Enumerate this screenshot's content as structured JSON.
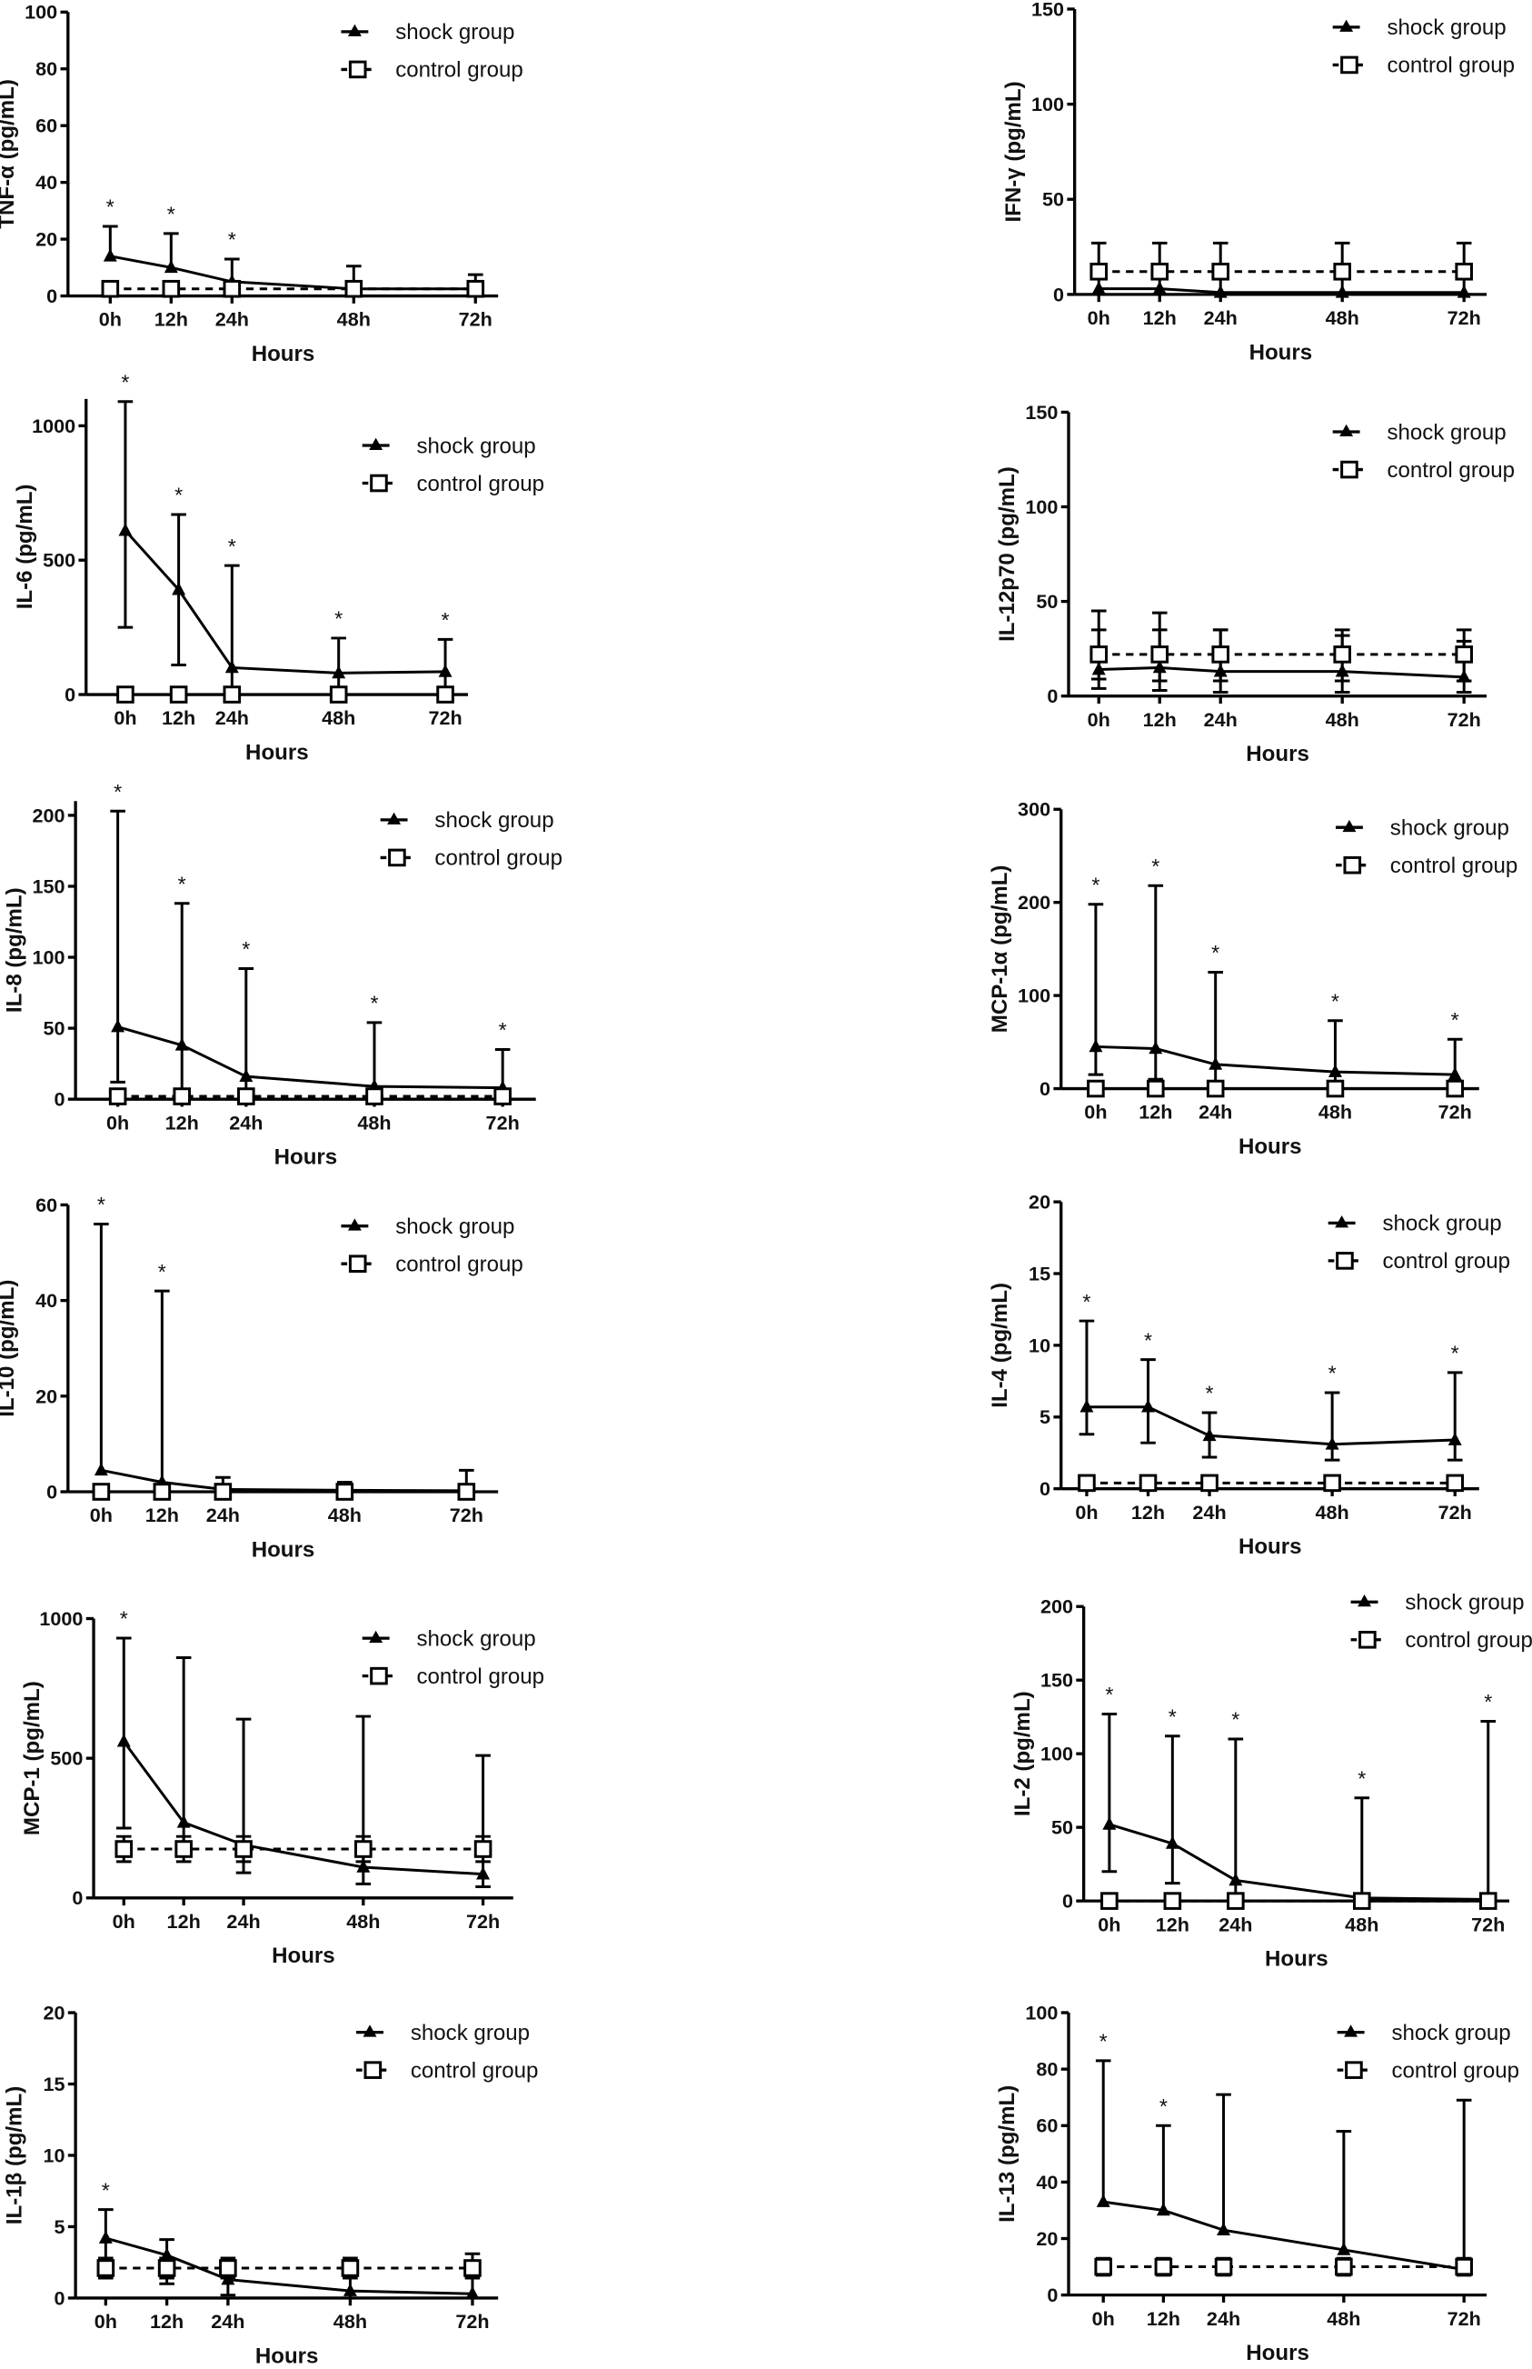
{
  "chart_data": [
    {
      "type": "line",
      "ylabel": "TNF-α (pg/mL)",
      "xlabel": "Hours",
      "x": [
        "0h",
        "12h",
        "24h",
        "48h",
        "72h"
      ],
      "hours": [
        0,
        12,
        24,
        48,
        72
      ],
      "ylim": [
        0,
        100
      ],
      "yticks": [
        0,
        20,
        40,
        60,
        80,
        100
      ],
      "series": [
        {
          "name": "shock group",
          "values": [
            14,
            10,
            5,
            2.5,
            2.5
          ],
          "err_upper": [
            24.5,
            22,
            13,
            10.5,
            7.5
          ],
          "err_lower": [
            null,
            null,
            null,
            null,
            null
          ]
        },
        {
          "name": "control group",
          "values": [
            2.5,
            2.5,
            2.5,
            2.5,
            2.5
          ],
          "err_upper": [
            null,
            null,
            null,
            null,
            null
          ],
          "err_lower": [
            null,
            null,
            null,
            null,
            null
          ]
        }
      ],
      "significance": [
        "*",
        "*",
        "*",
        "",
        ""
      ]
    },
    {
      "type": "line",
      "ylabel": "IFN-γ (pg/mL)",
      "xlabel": "Hours",
      "x": [
        "0h",
        "12h",
        "24h",
        "48h",
        "72h"
      ],
      "hours": [
        0,
        12,
        24,
        48,
        72
      ],
      "ylim": [
        0,
        150
      ],
      "yticks": [
        0,
        50,
        100,
        150
      ],
      "series": [
        {
          "name": "shock group",
          "values": [
            3,
            3,
            1,
            1,
            1
          ],
          "err_upper": [
            null,
            null,
            null,
            null,
            null
          ],
          "err_lower": [
            null,
            null,
            null,
            null,
            null
          ]
        },
        {
          "name": "control group",
          "values": [
            12,
            12,
            12,
            12,
            12
          ],
          "err_upper": [
            27,
            27,
            27,
            27,
            27
          ],
          "err_lower": [
            0,
            0,
            0,
            0,
            0
          ]
        }
      ],
      "significance": [
        "",
        "",
        "",
        "",
        ""
      ]
    },
    {
      "type": "line",
      "ylabel": "IL-6 (pg/mL)",
      "xlabel": "Hours",
      "x": [
        "0h",
        "12h",
        "24h",
        "48h",
        "72h"
      ],
      "hours": [
        0,
        12,
        24,
        48,
        72
      ],
      "ylim": [
        0,
        1100
      ],
      "yticks": [
        0,
        500,
        1000
      ],
      "series": [
        {
          "name": "shock group",
          "values": [
            610,
            390,
            100,
            80,
            85
          ],
          "err_upper": [
            1090,
            670,
            480,
            210,
            205
          ],
          "err_lower": [
            250,
            110,
            0,
            0,
            0
          ]
        },
        {
          "name": "control group",
          "values": [
            0,
            0,
            0,
            0,
            0
          ],
          "err_upper": [
            null,
            null,
            null,
            null,
            null
          ],
          "err_lower": [
            null,
            null,
            null,
            null,
            null
          ]
        }
      ],
      "significance": [
        "*",
        "*",
        "*",
        "*",
        "*"
      ]
    },
    {
      "type": "line",
      "ylabel": "IL-12p70 (pg/mL)",
      "xlabel": "Hours",
      "x": [
        "0h",
        "12h",
        "24h",
        "48h",
        "72h"
      ],
      "hours": [
        0,
        12,
        24,
        48,
        72
      ],
      "ylim": [
        0,
        150
      ],
      "yticks": [
        0,
        50,
        100,
        150
      ],
      "series": [
        {
          "name": "shock group",
          "values": [
            14,
            15,
            13,
            13,
            10
          ],
          "err_upper": [
            35,
            35,
            35,
            32,
            29
          ],
          "err_lower": [
            4,
            3,
            2,
            2,
            2
          ]
        },
        {
          "name": "control group",
          "values": [
            22,
            22,
            22,
            22,
            22
          ],
          "err_upper": [
            45,
            44,
            35,
            35,
            35
          ],
          "err_lower": [
            9,
            8,
            8,
            8,
            8
          ]
        }
      ],
      "significance": [
        "",
        "",
        "",
        "",
        ""
      ]
    },
    {
      "type": "line",
      "ylabel": "IL-8 (pg/mL)",
      "xlabel": "Hours",
      "x": [
        "0h",
        "12h",
        "24h",
        "48h",
        "72h"
      ],
      "hours": [
        0,
        12,
        24,
        48,
        72
      ],
      "ylim": [
        0,
        210
      ],
      "yticks": [
        0,
        50,
        100,
        150,
        200
      ],
      "series": [
        {
          "name": "shock group",
          "values": [
            51,
            38,
            16,
            9,
            8
          ],
          "err_upper": [
            203,
            138,
            92,
            54,
            35
          ],
          "err_lower": [
            12,
            5,
            2,
            1,
            1
          ]
        },
        {
          "name": "control group",
          "values": [
            2,
            2,
            2,
            2,
            2
          ],
          "err_upper": [
            null,
            null,
            null,
            null,
            null
          ],
          "err_lower": [
            null,
            null,
            null,
            null,
            null
          ]
        }
      ],
      "significance": [
        "*",
        "*",
        "*",
        "*",
        "*"
      ]
    },
    {
      "type": "line",
      "ylabel": "MCP-1α (pg/mL)",
      "xlabel": "Hours",
      "x": [
        "0h",
        "12h",
        "24h",
        "48h",
        "72h"
      ],
      "hours": [
        0,
        12,
        24,
        48,
        72
      ],
      "ylim": [
        0,
        300
      ],
      "yticks": [
        0,
        100,
        200,
        300
      ],
      "series": [
        {
          "name": "shock group",
          "values": [
            45,
            43,
            26,
            18,
            15
          ],
          "err_upper": [
            198,
            218,
            125,
            73,
            53
          ],
          "err_lower": [
            15,
            10,
            5,
            3,
            2
          ]
        },
        {
          "name": "control group",
          "values": [
            0,
            0,
            0,
            0,
            0
          ],
          "err_upper": [
            null,
            null,
            null,
            null,
            null
          ],
          "err_lower": [
            null,
            null,
            null,
            null,
            null
          ]
        }
      ],
      "significance": [
        "*",
        "*",
        "*",
        "*",
        "*"
      ]
    },
    {
      "type": "line",
      "ylabel": "IL-10 (pg/mL)",
      "xlabel": "Hours",
      "x": [
        "0h",
        "12h",
        "24h",
        "48h",
        "72h"
      ],
      "hours": [
        0,
        12,
        24,
        48,
        72
      ],
      "ylim": [
        0,
        60
      ],
      "yticks": [
        0,
        20,
        40,
        60
      ],
      "series": [
        {
          "name": "shock group",
          "values": [
            4.5,
            2,
            0.5,
            0.3,
            0.2
          ],
          "err_upper": [
            56,
            42,
            3,
            2,
            4.5
          ],
          "err_lower": [
            null,
            null,
            null,
            null,
            null
          ]
        },
        {
          "name": "control group",
          "values": [
            0,
            0,
            0,
            0,
            0
          ],
          "err_upper": [
            null,
            null,
            null,
            null,
            null
          ],
          "err_lower": [
            null,
            null,
            null,
            null,
            null
          ]
        }
      ],
      "significance": [
        "*",
        "*",
        "",
        "",
        ""
      ]
    },
    {
      "type": "line",
      "ylabel": "IL-4 (pg/mL)",
      "xlabel": "Hours",
      "x": [
        "0h",
        "12h",
        "24h",
        "48h",
        "72h"
      ],
      "hours": [
        0,
        12,
        24,
        48,
        72
      ],
      "ylim": [
        0,
        20
      ],
      "yticks": [
        0,
        5,
        10,
        15,
        20
      ],
      "series": [
        {
          "name": "shock group",
          "values": [
            5.7,
            5.7,
            3.7,
            3.1,
            3.4
          ],
          "err_upper": [
            11.7,
            9,
            5.3,
            6.7,
            8.1
          ],
          "err_lower": [
            3.8,
            3.2,
            2.2,
            2,
            2
          ]
        },
        {
          "name": "control group",
          "values": [
            0.4,
            0.4,
            0.4,
            0.4,
            0.4
          ],
          "err_upper": [
            null,
            null,
            null,
            null,
            null
          ],
          "err_lower": [
            null,
            null,
            null,
            null,
            null
          ]
        }
      ],
      "significance": [
        "*",
        "*",
        "*",
        "*",
        "*"
      ]
    },
    {
      "type": "line",
      "ylabel": "MCP-1 (pg/mL)",
      "xlabel": "Hours",
      "x": [
        "0h",
        "12h",
        "24h",
        "48h",
        "72h"
      ],
      "hours": [
        0,
        12,
        24,
        48,
        72
      ],
      "ylim": [
        0,
        1000
      ],
      "yticks": [
        0,
        500,
        1000
      ],
      "series": [
        {
          "name": "shock group",
          "values": [
            560,
            270,
            190,
            110,
            85
          ],
          "err_upper": [
            930,
            860,
            640,
            650,
            510
          ],
          "err_lower": [
            250,
            180,
            90,
            50,
            40
          ]
        },
        {
          "name": "control group",
          "values": [
            175,
            175,
            175,
            175,
            175
          ],
          "err_upper": [
            220,
            220,
            220,
            220,
            220
          ],
          "err_lower": [
            130,
            130,
            130,
            130,
            130
          ]
        }
      ],
      "significance": [
        "*",
        "",
        "",
        "",
        ""
      ]
    },
    {
      "type": "line",
      "ylabel": "IL-2 (pg/mL)",
      "xlabel": "Hours",
      "x": [
        "0h",
        "12h",
        "24h",
        "48h",
        "72h"
      ],
      "hours": [
        0,
        12,
        24,
        48,
        72
      ],
      "ylim": [
        0,
        200
      ],
      "yticks": [
        0,
        50,
        100,
        150,
        200
      ],
      "series": [
        {
          "name": "shock group",
          "values": [
            52,
            39,
            14,
            2,
            1
          ],
          "err_upper": [
            127,
            112,
            110,
            70,
            122
          ],
          "err_lower": [
            20,
            12,
            3,
            0,
            0
          ]
        },
        {
          "name": "control group",
          "values": [
            0,
            0,
            0,
            0,
            0
          ],
          "err_upper": [
            null,
            null,
            null,
            null,
            null
          ],
          "err_lower": [
            null,
            null,
            null,
            null,
            null
          ]
        }
      ],
      "significance": [
        "*",
        "*",
        "*",
        "*",
        "*"
      ]
    },
    {
      "type": "line",
      "ylabel": "IL-1β (pg/mL)",
      "xlabel": "Hours",
      "x": [
        "0h",
        "12h",
        "24h",
        "48h",
        "72h"
      ],
      "hours": [
        0,
        12,
        24,
        48,
        72
      ],
      "ylim": [
        0,
        20
      ],
      "yticks": [
        0,
        5,
        10,
        15,
        20
      ],
      "series": [
        {
          "name": "shock group",
          "values": [
            4.2,
            3,
            1.3,
            0.5,
            0.3
          ],
          "err_upper": [
            6.2,
            4.1,
            2.5,
            2.5,
            2.5
          ],
          "err_lower": [
            2.5,
            1,
            0.2,
            0,
            0
          ]
        },
        {
          "name": "control group",
          "values": [
            2.1,
            2.1,
            2.1,
            2.1,
            2.1
          ],
          "err_upper": [
            2.8,
            2.8,
            2.8,
            2.8,
            3.1
          ],
          "err_lower": [
            1.4,
            1.4,
            1.4,
            1.4,
            1.4
          ]
        }
      ],
      "significance": [
        "*",
        "",
        "",
        "",
        ""
      ]
    },
    {
      "type": "line",
      "ylabel": "IL-13 (pg/mL)",
      "xlabel": "Hours",
      "x": [
        "0h",
        "12h",
        "24h",
        "48h",
        "72h"
      ],
      "hours": [
        0,
        12,
        24,
        48,
        72
      ],
      "ylim": [
        0,
        100
      ],
      "yticks": [
        0,
        20,
        40,
        60,
        80,
        100
      ],
      "series": [
        {
          "name": "shock group",
          "values": [
            33,
            30,
            23,
            16,
            9
          ],
          "err_upper": [
            83,
            60,
            71,
            58,
            69
          ],
          "err_lower": [
            null,
            null,
            null,
            null,
            null
          ]
        },
        {
          "name": "control group",
          "values": [
            10,
            10,
            10,
            10,
            10
          ],
          "err_upper": [
            13,
            13,
            13,
            13,
            13
          ],
          "err_lower": [
            7,
            7,
            7,
            7,
            7
          ]
        }
      ],
      "significance": [
        "*",
        "*",
        "",
        "",
        ""
      ]
    }
  ]
}
